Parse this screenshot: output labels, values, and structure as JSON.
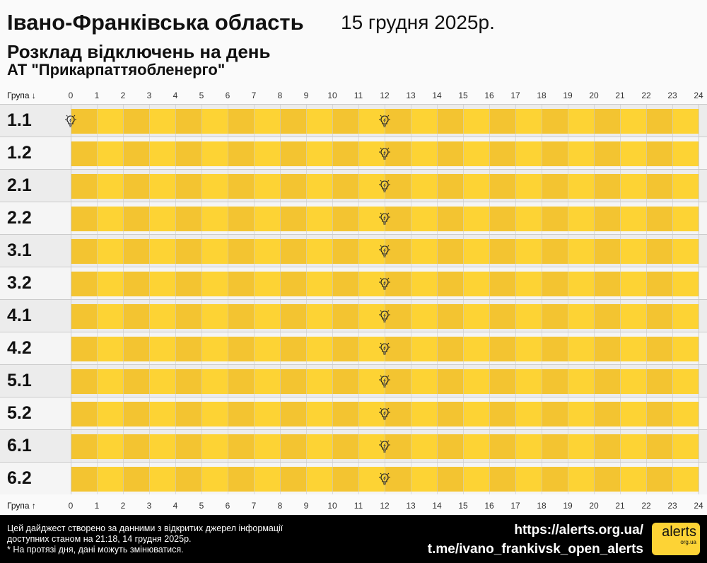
{
  "header": {
    "region": "Івано-Франківська область",
    "date": "15 грудня 2025р.",
    "title": "Розклад відключень на день",
    "company": "АТ \"Прикарпаттяобленерго\""
  },
  "axis": {
    "top_label": "Група ↓",
    "bottom_label": "Група ↑",
    "hours": [
      "0",
      "1",
      "2",
      "3",
      "4",
      "5",
      "6",
      "7",
      "8",
      "9",
      "10",
      "11",
      "12",
      "13",
      "14",
      "15",
      "16",
      "17",
      "18",
      "19",
      "20",
      "21",
      "22",
      "23",
      "24"
    ]
  },
  "colors": {
    "outage_dark": "#f3c431",
    "outage_light": "#fdd334",
    "row_dark": "#ececec",
    "row_light": "#f5f5f5"
  },
  "groups": [
    {
      "name": "1.1",
      "outage_hours": [
        0,
        24
      ],
      "bulb_hours": [
        0,
        12
      ]
    },
    {
      "name": "1.2",
      "outage_hours": [
        0,
        24
      ],
      "bulb_hours": [
        12
      ]
    },
    {
      "name": "2.1",
      "outage_hours": [
        0,
        24
      ],
      "bulb_hours": [
        12
      ]
    },
    {
      "name": "2.2",
      "outage_hours": [
        0,
        24
      ],
      "bulb_hours": [
        12
      ]
    },
    {
      "name": "3.1",
      "outage_hours": [
        0,
        24
      ],
      "bulb_hours": [
        12
      ]
    },
    {
      "name": "3.2",
      "outage_hours": [
        0,
        24
      ],
      "bulb_hours": [
        12
      ]
    },
    {
      "name": "4.1",
      "outage_hours": [
        0,
        24
      ],
      "bulb_hours": [
        12
      ]
    },
    {
      "name": "4.2",
      "outage_hours": [
        0,
        24
      ],
      "bulb_hours": [
        12
      ]
    },
    {
      "name": "5.1",
      "outage_hours": [
        0,
        24
      ],
      "bulb_hours": [
        12
      ]
    },
    {
      "name": "5.2",
      "outage_hours": [
        0,
        24
      ],
      "bulb_hours": [
        12
      ]
    },
    {
      "name": "6.1",
      "outage_hours": [
        0,
        24
      ],
      "bulb_hours": [
        12
      ]
    },
    {
      "name": "6.2",
      "outage_hours": [
        0,
        24
      ],
      "bulb_hours": [
        12
      ]
    }
  ],
  "footer": {
    "note_line1": "Цей дайджест створено за данними з відкритих джерел інформації",
    "note_line2": "доступних станом на 21:18, 14 грудня 2025р.",
    "note_line3": "* На протязі дня, дані можуть змінюватися.",
    "link1": "https://alerts.org.ua/",
    "link2": "t.me/ivano_frankivsk_open_alerts",
    "logo_text": "alerts",
    "logo_sub": "org.ua"
  }
}
